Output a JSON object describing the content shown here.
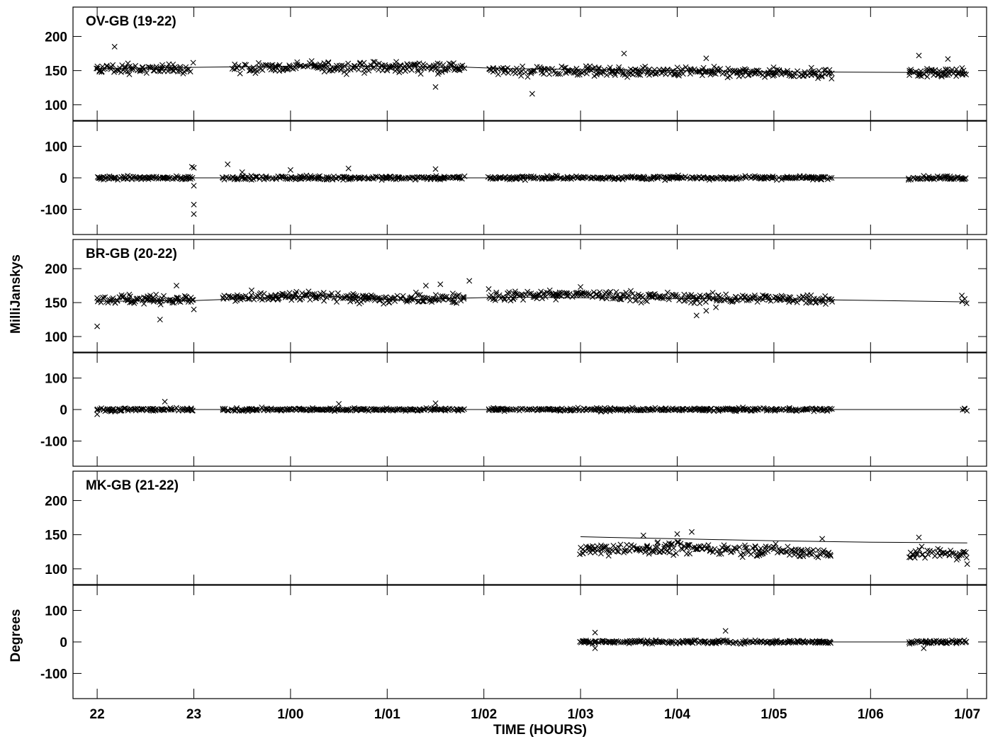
{
  "chart_data": {
    "type": "scatter",
    "x_axis": {
      "label": "TIME (HOURS)",
      "range_hours": [
        21.75,
        31.2
      ],
      "ticks": [
        {
          "label": "22",
          "hours": 22
        },
        {
          "label": "23",
          "hours": 23
        },
        {
          "label": "1/00",
          "hours": 24
        },
        {
          "label": "1/01",
          "hours": 25
        },
        {
          "label": "1/02",
          "hours": 26
        },
        {
          "label": "1/03",
          "hours": 27
        },
        {
          "label": "1/04",
          "hours": 28
        },
        {
          "label": "1/05",
          "hours": 29
        },
        {
          "label": "1/06",
          "hours": 30
        },
        {
          "label": "1/07",
          "hours": 31
        }
      ]
    },
    "y_axis_labels": {
      "amplitude": "MilliJanskys",
      "phase": "Degrees"
    },
    "amplitude_ticks": [
      "200",
      "150",
      "100"
    ],
    "phase_ticks": [
      "100",
      "0",
      "-100"
    ],
    "amplitude_range": [
      77,
      243
    ],
    "phase_range": [
      -180,
      180
    ],
    "marker": "x",
    "baselines": [
      {
        "title": "OV-GB (19-22)",
        "amplitude": {
          "model": [
            [
              22.0,
              153
            ],
            [
              24.3,
              157
            ],
            [
              25.8,
              155
            ],
            [
              26.2,
              153
            ],
            [
              28.0,
              150
            ],
            [
              29.3,
              148
            ],
            [
              31.0,
              147
            ]
          ],
          "observed": {
            "segments": [
              [
                22.0,
                23.0
              ],
              [
                23.4,
                25.8
              ],
              [
                26.05,
                29.6
              ],
              [
                30.4,
                31.0
              ]
            ],
            "level": [
              [
                22.0,
                153
              ],
              [
                23.0,
                152
              ],
              [
                24.3,
                156
              ],
              [
                25.8,
                155
              ],
              [
                26.1,
                150
              ],
              [
                28.0,
                148
              ],
              [
                29.6,
                145
              ],
              [
                30.4,
                148
              ],
              [
                31.0,
                147
              ]
            ],
            "spread": 9,
            "outliers": [
              [
                22.18,
                185
              ],
              [
                25.5,
                126
              ],
              [
                26.5,
                116
              ],
              [
                27.45,
                175
              ],
              [
                28.3,
                168
              ],
              [
                30.5,
                172
              ],
              [
                30.8,
                167
              ]
            ]
          }
        },
        "phase": {
          "model": [
            [
              22.0,
              0
            ],
            [
              31.0,
              0
            ]
          ],
          "observed": {
            "segments": [
              [
                22.0,
                23.0
              ],
              [
                23.3,
                25.8
              ],
              [
                26.05,
                29.6
              ],
              [
                30.4,
                31.0
              ]
            ],
            "level": [
              [
                22.0,
                0
              ],
              [
                31.0,
                0
              ]
            ],
            "spread": 7,
            "outliers": [
              [
                22.98,
                35
              ],
              [
                23.0,
                32
              ],
              [
                23.0,
                -25
              ],
              [
                23.0,
                -85
              ],
              [
                23.0,
                -115
              ],
              [
                23.35,
                43
              ],
              [
                23.5,
                18
              ],
              [
                24.0,
                25
              ],
              [
                24.6,
                30
              ],
              [
                25.5,
                28
              ]
            ]
          }
        }
      },
      {
        "title": "BR-GB (20-22)",
        "amplitude": {
          "model": [
            [
              22.0,
              152
            ],
            [
              23.0,
              153
            ],
            [
              24.3,
              160
            ],
            [
              25.1,
              154
            ],
            [
              26.2,
              158
            ],
            [
              28.0,
              156
            ],
            [
              29.6,
              154
            ],
            [
              31.0,
              151
            ]
          ],
          "observed": {
            "segments": [
              [
                22.0,
                23.0
              ],
              [
                23.3,
                25.8
              ],
              [
                26.05,
                29.6
              ],
              [
                30.95,
                31.0
              ]
            ],
            "level": [
              [
                22.0,
                155
              ],
              [
                23.0,
                155
              ],
              [
                24.3,
                160
              ],
              [
                25.1,
                154
              ],
              [
                26.2,
                160
              ],
              [
                27.0,
                162
              ],
              [
                28.0,
                157
              ],
              [
                29.6,
                155
              ],
              [
                31.0,
                155
              ]
            ],
            "spread": 9,
            "outliers": [
              [
                22.0,
                115
              ],
              [
                22.65,
                125
              ],
              [
                22.82,
                175
              ],
              [
                23.0,
                140
              ],
              [
                25.4,
                175
              ],
              [
                25.55,
                177
              ],
              [
                25.85,
                182
              ],
              [
                26.05,
                170
              ],
              [
                27.0,
                173
              ],
              [
                28.2,
                131
              ],
              [
                28.3,
                138
              ],
              [
                28.4,
                143
              ]
            ]
          }
        },
        "phase": {
          "model": [
            [
              22.0,
              0
            ],
            [
              31.0,
              0
            ]
          ],
          "observed": {
            "segments": [
              [
                22.0,
                23.0
              ],
              [
                23.3,
                25.8
              ],
              [
                26.05,
                29.6
              ],
              [
                30.95,
                31.0
              ]
            ],
            "level": [
              [
                22.0,
                0
              ],
              [
                31.0,
                0
              ]
            ],
            "spread": 6,
            "outliers": [
              [
                22.7,
                25
              ],
              [
                24.5,
                18
              ],
              [
                25.5,
                20
              ],
              [
                22.0,
                -15
              ]
            ]
          }
        }
      },
      {
        "title": "MK-GB (21-22)",
        "amplitude": {
          "model": [
            [
              27.0,
              147
            ],
            [
              27.3,
              146
            ],
            [
              28.0,
              144
            ],
            [
              29.0,
              141
            ],
            [
              30.0,
              139
            ],
            [
              31.0,
              138
            ]
          ],
          "observed": {
            "segments": [
              [
                27.0,
                29.6
              ],
              [
                30.4,
                31.0
              ]
            ],
            "level": [
              [
                27.0,
                128
              ],
              [
                28.0,
                130
              ],
              [
                29.0,
                127
              ],
              [
                29.6,
                122
              ],
              [
                30.4,
                123
              ],
              [
                31.0,
                121
              ]
            ],
            "spread": 11,
            "outliers": [
              [
                27.65,
                149
              ],
              [
                28.0,
                151
              ],
              [
                28.15,
                154
              ],
              [
                29.5,
                144
              ],
              [
                30.5,
                146
              ],
              [
                31.0,
                107
              ]
            ]
          }
        },
        "phase": {
          "model": [
            [
              27.0,
              0
            ],
            [
              31.0,
              0
            ]
          ],
          "observed": {
            "segments": [
              [
                27.0,
                29.6
              ],
              [
                30.4,
                31.0
              ]
            ],
            "level": [
              [
                27.0,
                0
              ],
              [
                31.0,
                0
              ]
            ],
            "spread": 7,
            "outliers": [
              [
                27.15,
                30
              ],
              [
                27.15,
                -20
              ],
              [
                28.5,
                35
              ],
              [
                30.55,
                -20
              ]
            ]
          }
        }
      }
    ]
  }
}
